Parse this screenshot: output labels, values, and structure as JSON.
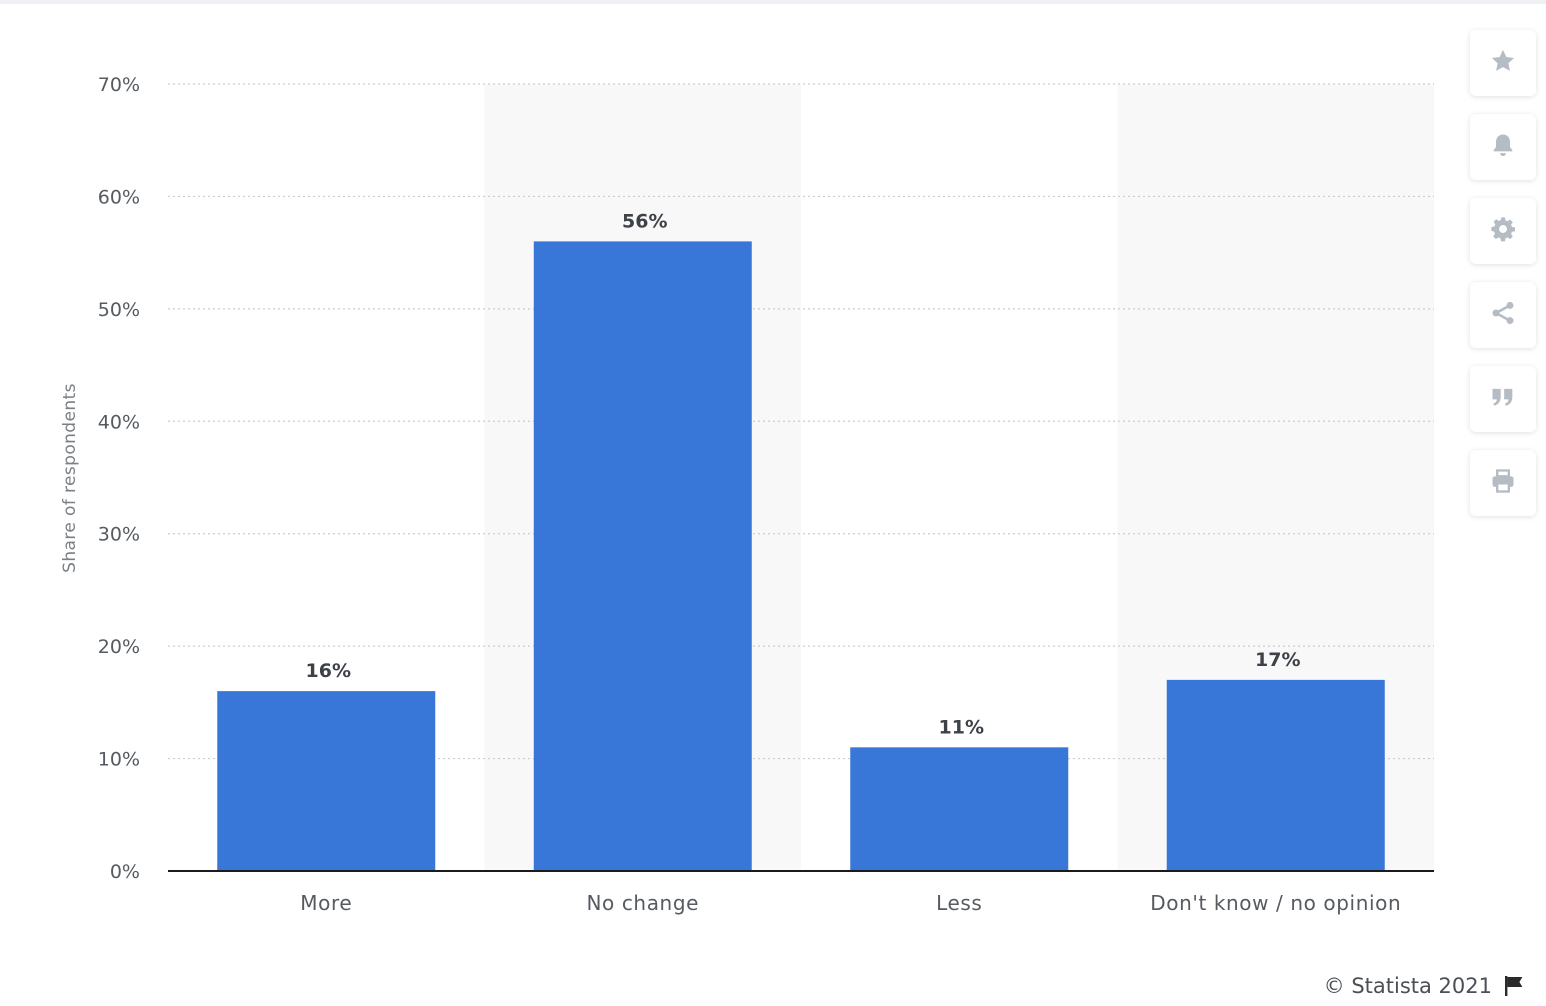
{
  "chart_data": {
    "type": "bar",
    "categories": [
      "More",
      "No change",
      "Less",
      "Don't know / no opinion"
    ],
    "values": [
      16,
      56,
      11,
      17
    ],
    "value_labels": [
      "16%",
      "56%",
      "11%",
      "17%"
    ],
    "ylabel": "Share of respondents",
    "ylim": [
      0,
      70
    ],
    "yticks": [
      0,
      10,
      20,
      30,
      40,
      50,
      60,
      70
    ],
    "ytick_labels": [
      "0%",
      "10%",
      "20%",
      "30%",
      "40%",
      "50%",
      "60%",
      "70%"
    ],
    "grid": true,
    "bar_color": "#3876d8"
  },
  "toolbar": {
    "items": [
      {
        "icon": "star-icon"
      },
      {
        "icon": "bell-icon"
      },
      {
        "icon": "gear-icon"
      },
      {
        "icon": "share-icon"
      },
      {
        "icon": "quote-icon"
      },
      {
        "icon": "print-icon"
      }
    ]
  },
  "footer": {
    "credit": "© Statista 2021"
  },
  "colors": {
    "icon": "#b5bcc4",
    "alt_band": "#f8f8f8",
    "grid": "#c9ccd0"
  }
}
